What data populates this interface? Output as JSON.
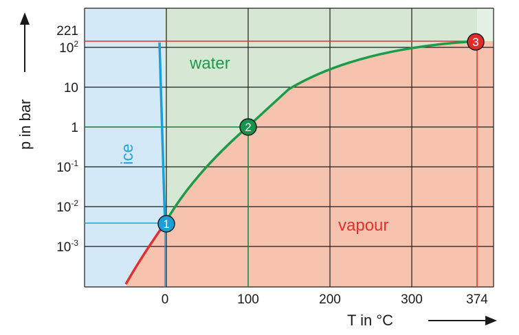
{
  "chart_data": {
    "type": "phase-diagram",
    "xlabel": "T in °C",
    "ylabel": "p in bar",
    "x_tick_labels": [
      "0",
      "100",
      "200",
      "300",
      "374"
    ],
    "y_tick_labels": [
      {
        "base": "221",
        "sup": ""
      },
      {
        "base": "10",
        "sup": "2"
      },
      {
        "base": "10",
        "sup": ""
      },
      {
        "base": "1",
        "sup": ""
      },
      {
        "base": "10",
        "sup": "-1"
      },
      {
        "base": "10",
        "sup": "-2"
      },
      {
        "base": "10",
        "sup": "-3"
      }
    ],
    "regions": {
      "ice": {
        "label": "ice",
        "color": "#2ba3da"
      },
      "water": {
        "label": "water",
        "color": "#1f9a4a"
      },
      "vapour": {
        "label": "vapour",
        "color": "#e0302f"
      }
    },
    "points": [
      {
        "label": "1",
        "T": 0.01,
        "p": 0.006,
        "color": "#1a9fd9"
      },
      {
        "label": "2",
        "T": 100,
        "p": 1.013,
        "color": "#16924a"
      },
      {
        "label": "3",
        "T": 374,
        "p": 221,
        "color": "#e02b2b"
      }
    ],
    "colors": {
      "ice_fill": "#d3e9f7",
      "water_fill": "#d6e8d4",
      "vapour_fill": "#f5c3ae",
      "grid": "#1a1a1a"
    }
  }
}
